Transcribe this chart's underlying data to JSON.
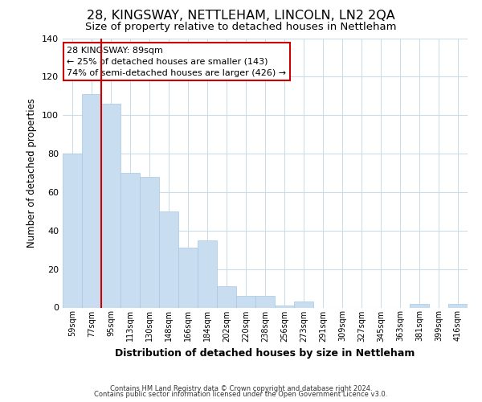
{
  "title": "28, KINGSWAY, NETTLEHAM, LINCOLN, LN2 2QA",
  "subtitle": "Size of property relative to detached houses in Nettleham",
  "xlabel": "Distribution of detached houses by size in Nettleham",
  "ylabel": "Number of detached properties",
  "categories": [
    "59sqm",
    "77sqm",
    "95sqm",
    "113sqm",
    "130sqm",
    "148sqm",
    "166sqm",
    "184sqm",
    "202sqm",
    "220sqm",
    "238sqm",
    "256sqm",
    "273sqm",
    "291sqm",
    "309sqm",
    "327sqm",
    "345sqm",
    "363sqm",
    "381sqm",
    "399sqm",
    "416sqm"
  ],
  "values": [
    80,
    111,
    106,
    70,
    68,
    50,
    31,
    35,
    11,
    6,
    6,
    1,
    3,
    0,
    0,
    0,
    0,
    0,
    2,
    0,
    2
  ],
  "bar_color": "#c8ddf0",
  "bar_edge_color": "#a8c8e0",
  "vline_x_index": 2,
  "vline_color": "#cc0000",
  "annotation_title": "28 KINGSWAY: 89sqm",
  "annotation_line1": "← 25% of detached houses are smaller (143)",
  "annotation_line2": "74% of semi-detached houses are larger (426) →",
  "annotation_box_color": "#ffffff",
  "annotation_box_edge": "#cc0000",
  "ylim": [
    0,
    140
  ],
  "yticks": [
    0,
    20,
    40,
    60,
    80,
    100,
    120,
    140
  ],
  "footer1": "Contains HM Land Registry data © Crown copyright and database right 2024.",
  "footer2": "Contains public sector information licensed under the Open Government Licence v3.0.",
  "background_color": "#ffffff",
  "grid_color": "#ccdde8",
  "title_fontsize": 11.5,
  "subtitle_fontsize": 9.5
}
